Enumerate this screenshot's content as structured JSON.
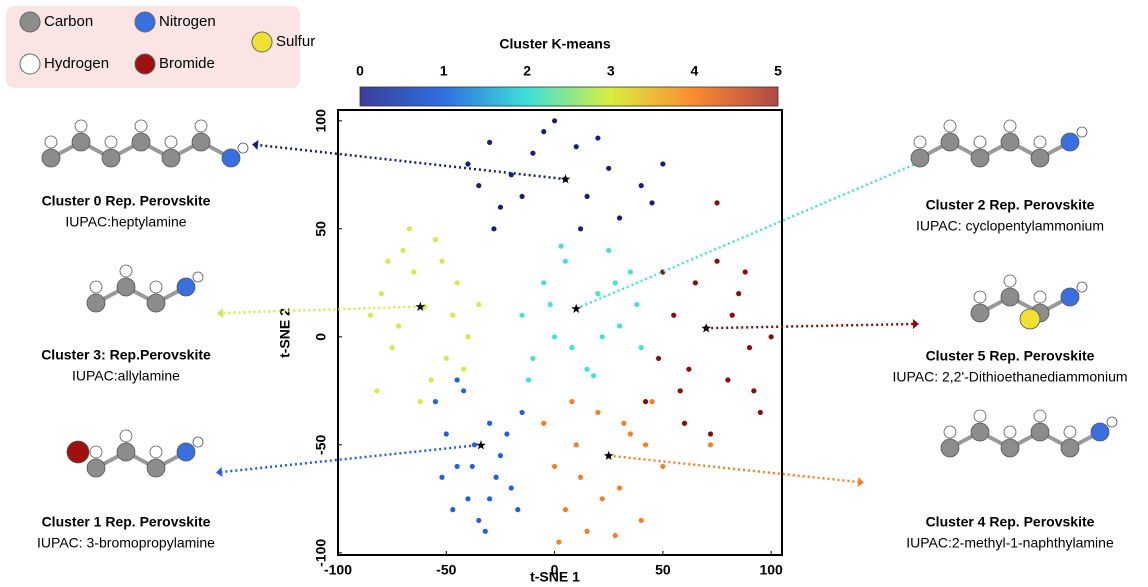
{
  "chart_data": {
    "type": "scatter",
    "xlabel": "t-SNE 1",
    "ylabel": "t-SNE 2",
    "xlim": [
      -100,
      105
    ],
    "ylim": [
      -101,
      105
    ],
    "xticks": [
      -100,
      -50,
      0,
      50,
      100
    ],
    "yticks": [
      -100,
      -50,
      0,
      50,
      100
    ],
    "colorbar": {
      "label": "Cluster K-means",
      "lim": [
        0,
        5
      ],
      "ticks": [
        0,
        1,
        2,
        3,
        4,
        5
      ],
      "colors": [
        "#3b3f9b",
        "#2f6fe0",
        "#3ce0d8",
        "#d8ee40",
        "#fb8a30",
        "#b04848"
      ]
    },
    "legend": [
      {
        "label": "Carbon",
        "color": "#8c8c8c"
      },
      {
        "label": "Nitrogen",
        "color": "#3a6fe0"
      },
      {
        "label": "Sulfur",
        "color": "#f0e030"
      },
      {
        "label": "Hydrogen",
        "color": "#ffffff"
      },
      {
        "label": "Bromide",
        "color": "#a01010"
      }
    ],
    "series": [
      {
        "color": "#16207a",
        "x": [
          -40,
          -35,
          -30,
          -25,
          -20,
          -10,
          -5,
          0,
          5,
          10,
          15,
          20,
          25,
          30,
          40,
          45,
          50,
          -28,
          12,
          -15
        ],
        "y": [
          80,
          70,
          90,
          60,
          75,
          85,
          95,
          100,
          73,
          88,
          65,
          92,
          78,
          55,
          70,
          62,
          80,
          50,
          50,
          65
        ],
        "rep": {
          "x": 5,
          "y": 73,
          "title": "Cluster 0 Rep. Perovskite",
          "iupac": "IUPAC:heptylamine"
        }
      },
      {
        "color": "#1f60e6",
        "x": [
          -55,
          -50,
          -45,
          -40,
          -35,
          -30,
          -25,
          -20,
          -15,
          -52,
          -47,
          -42,
          -37,
          -32,
          -27,
          -22,
          -17,
          -45,
          -30,
          -38
        ],
        "y": [
          -30,
          -45,
          -60,
          -75,
          -85,
          -40,
          -55,
          -70,
          -35,
          -65,
          -80,
          -25,
          -50,
          -90,
          -65,
          -45,
          -80,
          -20,
          -75,
          -60
        ],
        "rep": {
          "x": -34,
          "y": -50,
          "title": "Cluster 1 Rep. Perovskite",
          "iupac": "IUPAC: 3-bromopropylamine"
        }
      },
      {
        "color": "#3ee6d2",
        "x": [
          -15,
          -10,
          -5,
          0,
          5,
          10,
          15,
          20,
          25,
          30,
          35,
          40,
          -12,
          -2,
          8,
          18,
          28,
          38,
          3,
          22
        ],
        "y": [
          10,
          -10,
          25,
          0,
          35,
          13,
          -15,
          20,
          40,
          5,
          30,
          -5,
          -20,
          15,
          -5,
          -18,
          25,
          15,
          42,
          0
        ],
        "rep": {
          "x": 10,
          "y": 13,
          "title": "Cluster 2 Rep. Perovskite",
          "iupac": "IUPAC: cyclopentylammonium"
        }
      },
      {
        "color": "#cdee45",
        "x": [
          -85,
          -80,
          -75,
          -70,
          -65,
          -60,
          -55,
          -50,
          -45,
          -40,
          -35,
          -82,
          -72,
          -62,
          -52,
          -42,
          -77,
          -57,
          -47,
          -67
        ],
        "y": [
          10,
          20,
          -5,
          40,
          30,
          14,
          45,
          -10,
          25,
          0,
          15,
          -25,
          5,
          -30,
          35,
          -15,
          35,
          -20,
          10,
          50
        ],
        "rep": {
          "x": -62,
          "y": 14,
          "title": "Cluster 3: Rep.Perovskite",
          "iupac": "IUPAC:allylamine"
        }
      },
      {
        "color": "#fb7d22",
        "x": [
          -5,
          0,
          5,
          10,
          15,
          20,
          25,
          30,
          35,
          40,
          45,
          50,
          2,
          12,
          22,
          32,
          42,
          8,
          28,
          72
        ],
        "y": [
          -40,
          -60,
          -80,
          -50,
          -90,
          -35,
          -55,
          -70,
          -45,
          -85,
          -30,
          -60,
          -95,
          -65,
          -75,
          -40,
          -50,
          -30,
          -92,
          -50
        ],
        "rep": {
          "x": 25,
          "y": -55,
          "title": "Cluster 4 Rep. Perovskite",
          "iupac": "IUPAC:2-methyl-1-naphthylamine"
        }
      },
      {
        "color": "#8a0c0c",
        "x": [
          42,
          48,
          55,
          60,
          65,
          70,
          75,
          80,
          85,
          90,
          95,
          100,
          50,
          62,
          72,
          82,
          92,
          58,
          75,
          88
        ],
        "y": [
          -30,
          -10,
          10,
          -40,
          25,
          4,
          35,
          -20,
          20,
          -5,
          -35,
          0,
          30,
          -15,
          -45,
          10,
          -25,
          -25,
          62,
          30
        ],
        "rep": {
          "x": 70,
          "y": 4,
          "title": "Cluster 5 Rep. Perovskite",
          "iupac": "IUPAC: 2,2'-Dithioethanediammonium"
        }
      }
    ]
  }
}
